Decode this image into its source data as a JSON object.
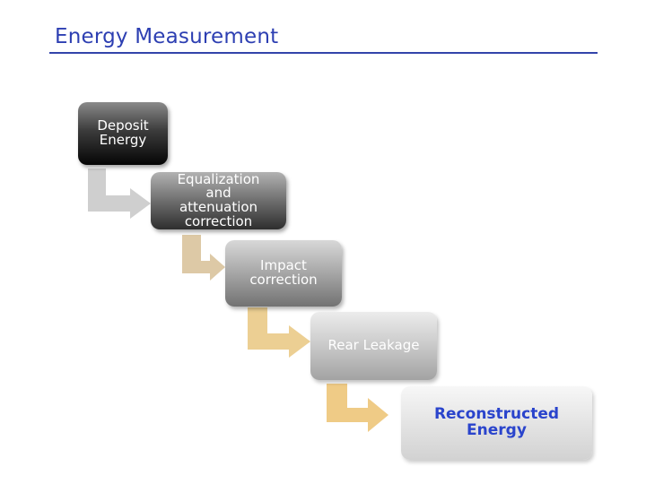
{
  "slide": {
    "title": "Energy Measurement"
  },
  "steps": [
    {
      "lines": [
        "Deposit",
        "Energy"
      ]
    },
    {
      "lines": [
        "Equalization",
        "and",
        "attenuation",
        "correction"
      ]
    },
    {
      "lines": [
        "Impact",
        "correction"
      ]
    },
    {
      "lines": [
        "Rear Leakage"
      ]
    },
    {
      "lines": [
        "Reconstructed",
        "Energy"
      ]
    }
  ],
  "colors": {
    "title": "#2d3fb2",
    "final_step_text": "#2a44cc",
    "arrow_1": "#cfcfcf",
    "arrow_2": "#ddc9a6",
    "arrow_3": "#eccf93",
    "arrow_4": "#efcb86"
  }
}
